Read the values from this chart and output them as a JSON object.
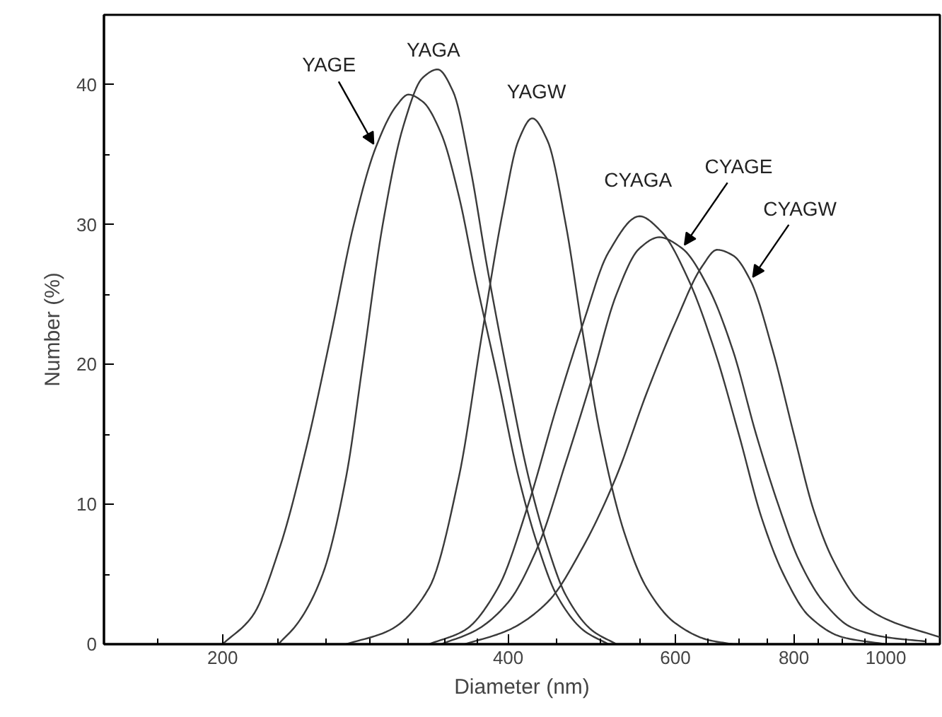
{
  "chart_data": {
    "type": "line",
    "xlabel": "Diameter (nm)",
    "ylabel": "Number (%)",
    "log": "x",
    "grid": false,
    "legend": false,
    "marker": "none",
    "line_style": "solid",
    "xlim": [
      150,
      1140
    ],
    "ylim": [
      0,
      45
    ],
    "xticks": [
      {
        "value": 171,
        "label": null
      },
      200,
      {
        "value": 229,
        "label": null
      },
      {
        "value": 257,
        "label": null
      },
      {
        "value": 286,
        "label": null
      },
      {
        "value": 314,
        "label": null
      },
      {
        "value": 343,
        "label": null
      },
      {
        "value": 371,
        "label": null
      },
      400,
      {
        "value": 450,
        "label": null
      },
      {
        "value": 500,
        "label": null
      },
      {
        "value": 550,
        "label": null
      },
      600,
      {
        "value": 650,
        "label": null
      },
      {
        "value": 700,
        "label": null
      },
      {
        "value": 750,
        "label": null
      },
      800,
      {
        "value": 850,
        "label": null
      },
      {
        "value": 900,
        "label": null
      },
      {
        "value": 950,
        "label": null
      },
      1000,
      {
        "value": 1050,
        "label": null
      },
      {
        "value": 1100,
        "label": null
      }
    ],
    "yticks": [
      0,
      {
        "value": 5,
        "label": null
      },
      10,
      {
        "value": 15,
        "label": null
      },
      20,
      {
        "value": 25,
        "label": null
      },
      30,
      {
        "value": 35,
        "label": null
      },
      40
    ],
    "series": [
      {
        "name": "YAGE",
        "color": "#3a3a3a",
        "x": [
          200,
          215,
          230,
          245,
          260,
          275,
          290,
          305,
          314,
          325,
          340,
          355,
          370,
          390,
          410,
          430,
          450,
          480,
          510
        ],
        "values": [
          0,
          2,
          7,
          14,
          22,
          30,
          35.5,
          38.5,
          39.3,
          38.8,
          36.5,
          32,
          26,
          19,
          12,
          7,
          3.5,
          1,
          0
        ]
      },
      {
        "name": "YAGA",
        "color": "#3a3a3a",
        "x": [
          229,
          240,
          255,
          270,
          281,
          295,
          310,
          325,
          337,
          350,
          365,
          380,
          400,
          420,
          440,
          460,
          490,
          520
        ],
        "values": [
          0,
          1.5,
          5,
          12,
          20,
          30,
          37,
          40.5,
          41.1,
          39.5,
          34,
          27,
          19,
          12,
          7,
          3.5,
          1,
          0
        ]
      },
      {
        "name": "YAGW",
        "color": "#3a3a3a",
        "x": [
          270,
          300,
          330,
          355,
          375,
          395,
          410,
          424,
          440,
          460,
          480,
          500,
          530,
          560,
          600,
          650,
          690
        ],
        "values": [
          0,
          1,
          4,
          12,
          22,
          31,
          36,
          37.6,
          36,
          30,
          22,
          15,
          8,
          4,
          1.5,
          0.3,
          0
        ]
      },
      {
        "name": "CYAGA",
        "color": "#3a3a3a",
        "x": [
          330,
          360,
          390,
          420,
          450,
          480,
          510,
          550,
          580,
          620,
          660,
          700,
          740,
          780,
          830,
          900,
          1000
        ],
        "values": [
          0,
          1,
          4,
          10,
          17,
          23,
          28,
          30.6,
          29.5,
          26,
          21,
          15,
          9,
          5,
          2,
          0.5,
          0
        ]
      },
      {
        "name": "CYAGE",
        "color": "#3a3a3a",
        "x": [
          340,
          370,
          400,
          430,
          460,
          490,
          520,
          550,
          577,
          610,
          650,
          690,
          730,
          770,
          810,
          860,
          920,
          1000,
          1100
        ],
        "values": [
          0,
          1,
          3,
          7,
          13,
          19,
          25,
          28.3,
          29.1,
          28.3,
          25.5,
          21,
          15,
          10,
          6,
          3,
          1.2,
          0.5,
          0.2
        ]
      },
      {
        "name": "CYAGW",
        "color": "#3a3a3a",
        "x": [
          360,
          400,
          440,
          480,
          520,
          560,
          600,
          640,
          664,
          690,
          720,
          760,
          800,
          840,
          880,
          940,
          1000,
          1140
        ],
        "values": [
          0,
          1,
          3,
          7,
          12,
          18,
          23,
          27,
          28.2,
          27.8,
          26,
          21,
          15,
          9.5,
          6,
          3,
          1.8,
          0.5
        ]
      }
    ]
  }
}
